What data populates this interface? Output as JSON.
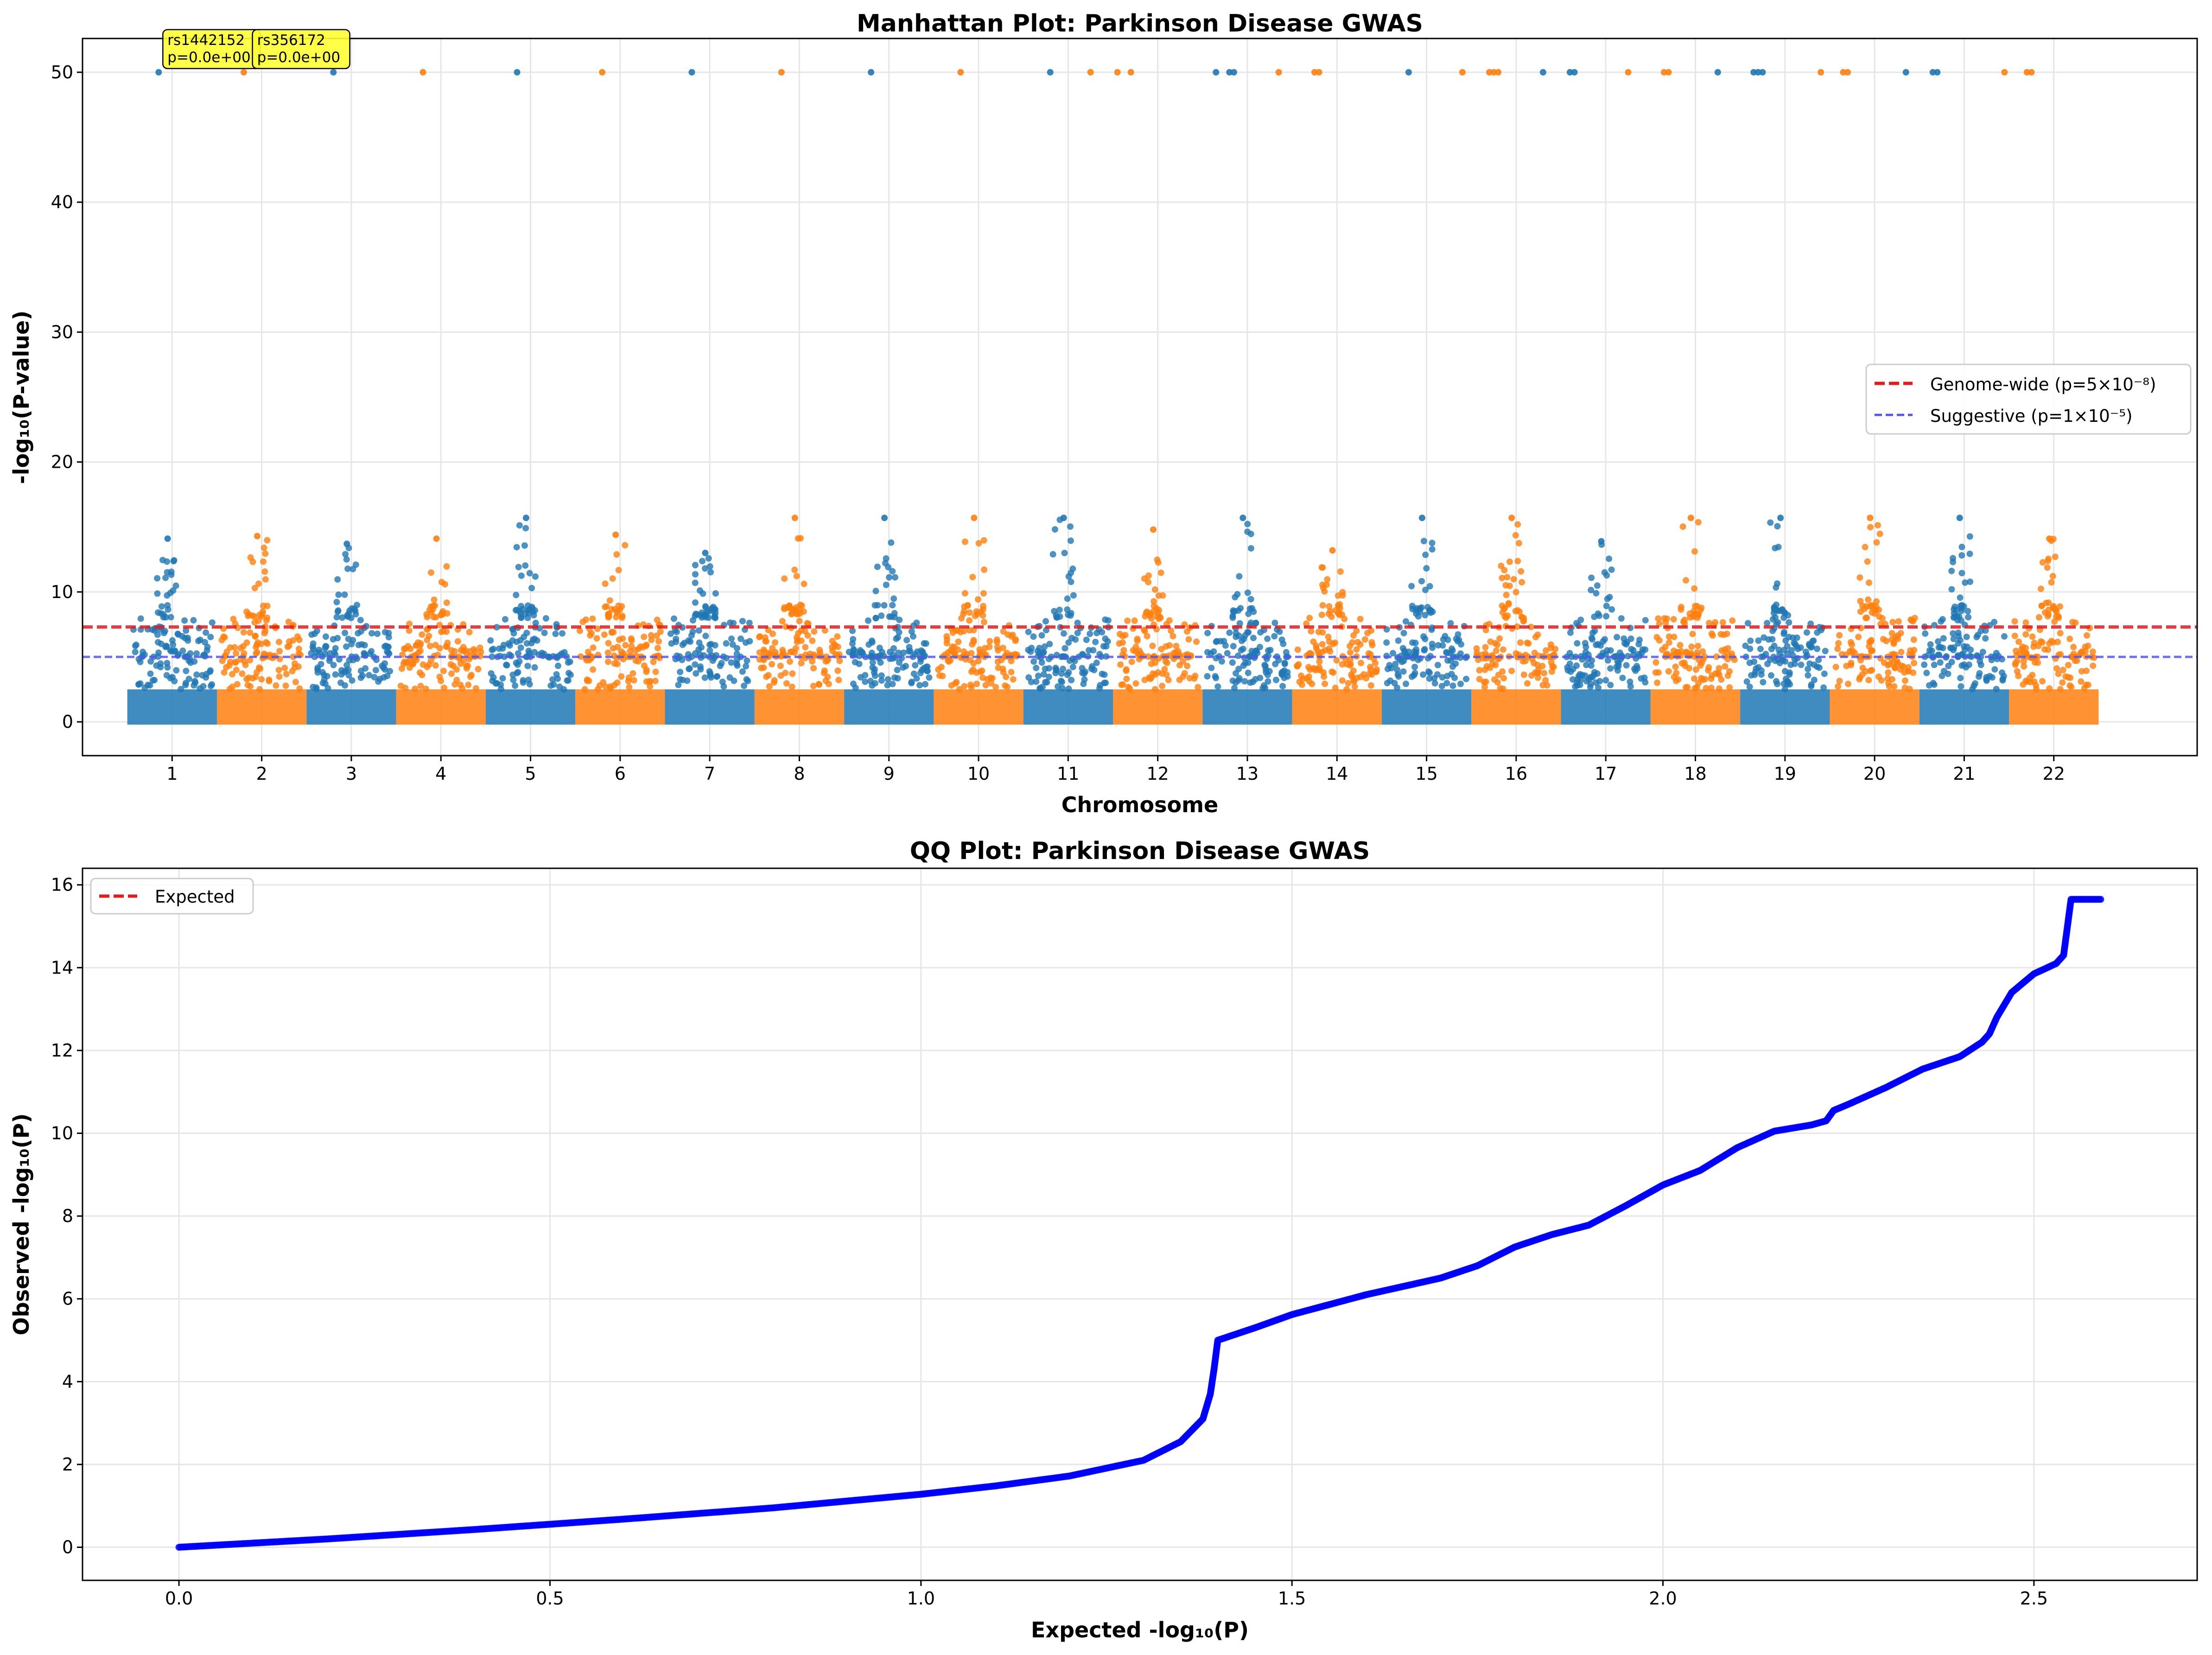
{
  "chart_data": [
    {
      "type": "scatter",
      "title": "Manhattan Plot: Parkinson Disease GWAS",
      "xlabel": "Chromosome",
      "ylabel": "-log₁₀(P-value)",
      "xlim": [
        0,
        23.6
      ],
      "ylim": [
        -2.6,
        52.6
      ],
      "yticks": [
        0,
        10,
        20,
        30,
        40,
        50
      ],
      "xticks": [
        "1",
        "2",
        "3",
        "4",
        "5",
        "6",
        "7",
        "8",
        "9",
        "10",
        "11",
        "12",
        "13",
        "14",
        "15",
        "16",
        "17",
        "18",
        "19",
        "20",
        "21",
        "22"
      ],
      "grid": true,
      "legend_position": "center-right",
      "series_colors": [
        "#1f77b4",
        "#ff7f0e"
      ],
      "chromosomes": [
        1,
        2,
        3,
        4,
        5,
        6,
        7,
        8,
        9,
        10,
        11,
        12,
        13,
        14,
        15,
        16,
        17,
        18,
        19,
        20,
        21,
        22
      ],
      "thresholds": [
        {
          "name": "Genome-wide (p=5×10⁻⁸)",
          "y": 7.3,
          "color": "#e41a1c",
          "style": "dashed"
        },
        {
          "name": "Suggestive (p=1×10⁻⁵)",
          "y": 5.0,
          "color": "#5555ee",
          "style": "dashed"
        }
      ],
      "background_band": {
        "y_min": 0,
        "y_max": 2.5
      },
      "capped_value": 50,
      "capped_hits": [
        {
          "chr": 1,
          "offsets": [
            -0.15
          ]
        },
        {
          "chr": 2,
          "offsets": [
            -0.2
          ]
        },
        {
          "chr": 3,
          "offsets": [
            -0.2
          ]
        },
        {
          "chr": 4,
          "offsets": [
            -0.2
          ]
        },
        {
          "chr": 5,
          "offsets": [
            -0.15
          ]
        },
        {
          "chr": 6,
          "offsets": [
            -0.2
          ]
        },
        {
          "chr": 7,
          "offsets": [
            -0.2
          ]
        },
        {
          "chr": 8,
          "offsets": [
            -0.2
          ]
        },
        {
          "chr": 9,
          "offsets": [
            -0.2
          ]
        },
        {
          "chr": 10,
          "offsets": [
            -0.2
          ]
        },
        {
          "chr": 11,
          "offsets": [
            -0.2
          ]
        },
        {
          "chr": 12,
          "offsets": [
            -0.75,
            -0.45,
            -0.3
          ]
        },
        {
          "chr": 13,
          "offsets": [
            -0.35,
            -0.2,
            -0.15
          ]
        },
        {
          "chr": 14,
          "offsets": [
            -0.65,
            -0.25,
            -0.2
          ]
        },
        {
          "chr": 15,
          "offsets": [
            -0.2
          ]
        },
        {
          "chr": 16,
          "offsets": [
            -0.6,
            -0.3,
            -0.25,
            -0.2
          ]
        },
        {
          "chr": 17,
          "offsets": [
            -0.7,
            -0.4,
            -0.35
          ]
        },
        {
          "chr": 18,
          "offsets": [
            -0.75,
            -0.35,
            -0.3
          ]
        },
        {
          "chr": 19,
          "offsets": [
            -0.75,
            -0.35,
            -0.3,
            -0.25
          ]
        },
        {
          "chr": 20,
          "offsets": [
            -0.6,
            -0.35,
            -0.3
          ]
        },
        {
          "chr": 21,
          "offsets": [
            -0.65,
            -0.35,
            -0.3
          ]
        },
        {
          "chr": 22,
          "offsets": [
            -0.55,
            -0.3,
            -0.25
          ]
        }
      ],
      "chr_peaks": [
        14.1,
        14.3,
        13.7,
        14.1,
        15.7,
        14.4,
        13.0,
        15.7,
        15.7,
        15.7,
        15.7,
        14.8,
        15.7,
        13.2,
        15.7,
        15.7,
        13.9,
        15.7,
        15.7,
        15.7,
        15.7,
        14.1
      ],
      "annotations": [
        {
          "label": "rs1442152",
          "sublabel": "p=0.0e+00",
          "chr": 1,
          "y": 50
        },
        {
          "label": "rs356172",
          "sublabel": "p=0.0e+00",
          "chr": 2,
          "y": 50
        }
      ]
    },
    {
      "type": "scatter",
      "title": "QQ Plot: Parkinson Disease GWAS",
      "xlabel": "Expected -log₁₀(P)",
      "ylabel": "Observed -log₁₀(P)",
      "xlim": [
        -0.13,
        2.72
      ],
      "ylim": [
        -0.8,
        16.4
      ],
      "xticks": [
        0.0,
        0.5,
        1.0,
        1.5,
        2.0,
        2.5
      ],
      "yticks": [
        0,
        2,
        4,
        6,
        8,
        10,
        12,
        14,
        16
      ],
      "grid": true,
      "legend_position": "top-left",
      "legend": [
        {
          "name": "Expected",
          "color": "#e41a1c",
          "style": "dashed"
        }
      ],
      "point_color": "#0000ff",
      "curve": {
        "x": [
          0.0,
          0.2,
          0.4,
          0.6,
          0.8,
          1.0,
          1.1,
          1.2,
          1.3,
          1.35,
          1.38,
          1.39,
          1.395,
          1.4,
          1.45,
          1.5,
          1.6,
          1.7,
          1.75,
          1.8,
          1.85,
          1.9,
          1.95,
          2.0,
          2.05,
          2.1,
          2.15,
          2.2,
          2.22,
          2.23,
          2.25,
          2.3,
          2.35,
          2.4,
          2.43,
          2.44,
          2.45,
          2.47,
          2.5,
          2.53,
          2.54,
          2.55,
          2.59
        ],
        "y": [
          0.0,
          0.2,
          0.43,
          0.68,
          0.95,
          1.28,
          1.48,
          1.72,
          2.1,
          2.55,
          3.1,
          3.7,
          4.3,
          5.0,
          5.3,
          5.62,
          6.1,
          6.5,
          6.8,
          7.25,
          7.55,
          7.78,
          8.25,
          8.75,
          9.1,
          9.65,
          10.05,
          10.2,
          10.3,
          10.55,
          10.7,
          11.1,
          11.55,
          11.85,
          12.2,
          12.4,
          12.8,
          13.4,
          13.85,
          14.1,
          14.3,
          15.65,
          15.65
        ]
      }
    }
  ]
}
